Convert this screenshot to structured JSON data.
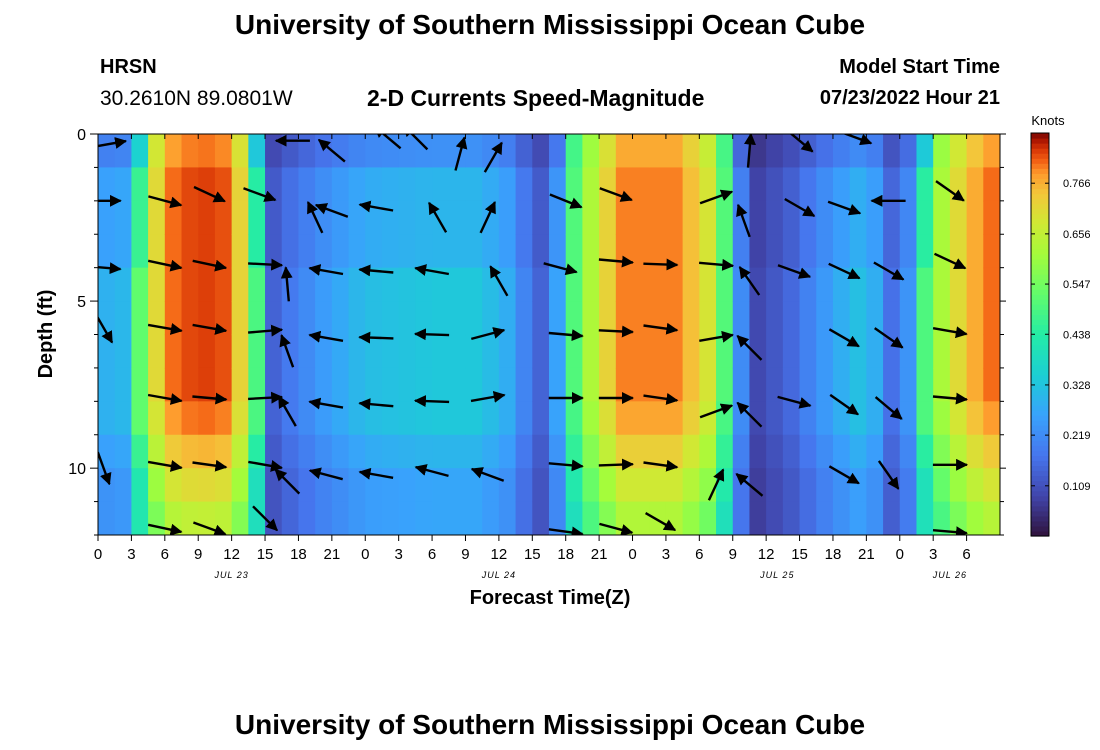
{
  "header": {
    "title": "University of Southern Mississippi Ocean Cube",
    "title_repeat": "University of Southern Mississippi Ocean Cube",
    "station": "HRSN",
    "coords": "30.2610N  89.0801W",
    "subtitle": "2-D Currents Speed-Magnitude",
    "start_label": "Model Start Time",
    "start_value": "07/23/2022 Hour 21"
  },
  "chart_data": {
    "type": "heatmap",
    "title": "2-D Currents Speed-Magnitude",
    "xlabel": "Forecast Time(Z)",
    "ylabel": "Depth (ft)",
    "colorbar_label": "Knots",
    "colorbar_ticks": [
      "0.766",
      "0.656",
      "0.547",
      "0.438",
      "0.328",
      "0.219",
      "0.109"
    ],
    "colorbar_values": [
      0.766,
      0.656,
      0.547,
      0.438,
      0.328,
      0.219,
      0.109
    ],
    "colorbar_range": [
      0.0,
      0.875
    ],
    "x_range_hours": [
      0,
      81
    ],
    "x_tick_labels": [
      "0",
      "3",
      "6",
      "9",
      "12",
      "15",
      "18",
      "21",
      "0",
      "3",
      "6",
      "9",
      "12",
      "15",
      "18",
      "21",
      "0",
      "3",
      "6",
      "9",
      "12",
      "15",
      "18",
      "21",
      "0",
      "3",
      "6"
    ],
    "date_labels": [
      {
        "label": "JUL 23",
        "hour": 12
      },
      {
        "label": "JUL 24",
        "hour": 36
      },
      {
        "label": "JUL 25",
        "hour": 61
      },
      {
        "label": "JUL 26",
        "hour": 76.5
      }
    ],
    "y_range_ft": [
      0,
      12
    ],
    "y_tick_labels": [
      "0",
      "5",
      "10"
    ],
    "y_tick_values": [
      0,
      5,
      10
    ],
    "speed_profile": {
      "hours": [
        0,
        1.5,
        3,
        4,
        5,
        6,
        9,
        12,
        13.5,
        14.5,
        15.5,
        17,
        20,
        24,
        30,
        34,
        37,
        38.5,
        40,
        41.5,
        43,
        47,
        52,
        55,
        56.5,
        57.5,
        59,
        62,
        66,
        69,
        70,
        71,
        73,
        75,
        78,
        81
      ],
      "knots": [
        0.29,
        0.23,
        0.31,
        0.52,
        0.68,
        0.8,
        0.84,
        0.82,
        0.62,
        0.38,
        0.12,
        0.16,
        0.22,
        0.28,
        0.3,
        0.3,
        0.25,
        0.17,
        0.12,
        0.26,
        0.55,
        0.8,
        0.8,
        0.68,
        0.47,
        0.22,
        0.08,
        0.13,
        0.24,
        0.3,
        0.24,
        0.14,
        0.22,
        0.58,
        0.75,
        0.83
      ]
    },
    "vectors": [
      {
        "hour": 1,
        "depth": 0.3,
        "dir_deg": 10
      },
      {
        "hour": 0.5,
        "depth": 2.0,
        "dir_deg": 0
      },
      {
        "hour": 0.5,
        "depth": 4.0,
        "dir_deg": -5
      },
      {
        "hour": 0.5,
        "depth": 5.8,
        "dir_deg": -60
      },
      {
        "hour": 0.5,
        "depth": 10.0,
        "dir_deg": -70
      },
      {
        "hour": 6,
        "depth": 2.0,
        "dir_deg": -15
      },
      {
        "hour": 6,
        "depth": 3.9,
        "dir_deg": -12
      },
      {
        "hour": 6,
        "depth": 5.8,
        "dir_deg": -10
      },
      {
        "hour": 6,
        "depth": 7.9,
        "dir_deg": -10
      },
      {
        "hour": 6,
        "depth": 9.9,
        "dir_deg": -10
      },
      {
        "hour": 6,
        "depth": 11.8,
        "dir_deg": -12
      },
      {
        "hour": 10,
        "depth": 1.8,
        "dir_deg": -25
      },
      {
        "hour": 10,
        "depth": 3.9,
        "dir_deg": -12
      },
      {
        "hour": 10,
        "depth": 5.8,
        "dir_deg": -10
      },
      {
        "hour": 10,
        "depth": 7.9,
        "dir_deg": -5
      },
      {
        "hour": 10,
        "depth": 9.9,
        "dir_deg": -8
      },
      {
        "hour": 10,
        "depth": 11.8,
        "dir_deg": -20
      },
      {
        "hour": 14.5,
        "depth": 1.8,
        "dir_deg": -20
      },
      {
        "hour": 15,
        "depth": 3.9,
        "dir_deg": -3
      },
      {
        "hour": 15,
        "depth": 5.9,
        "dir_deg": 5
      },
      {
        "hour": 15,
        "depth": 7.9,
        "dir_deg": 3
      },
      {
        "hour": 15,
        "depth": 9.9,
        "dir_deg": -10
      },
      {
        "hour": 15,
        "depth": 11.5,
        "dir_deg": -45
      },
      {
        "hour": 17.5,
        "depth": 0.2,
        "dir_deg": 180
      },
      {
        "hour": 19.5,
        "depth": 2.5,
        "dir_deg": 115
      },
      {
        "hour": 17,
        "depth": 4.5,
        "dir_deg": 95
      },
      {
        "hour": 17,
        "depth": 6.5,
        "dir_deg": 110
      },
      {
        "hour": 17,
        "depth": 8.3,
        "dir_deg": 120
      },
      {
        "hour": 17,
        "depth": 10.4,
        "dir_deg": 135
      },
      {
        "hour": 21,
        "depth": 0.5,
        "dir_deg": 140
      },
      {
        "hour": 21,
        "depth": 2.3,
        "dir_deg": 160
      },
      {
        "hour": 20.5,
        "depth": 4.1,
        "dir_deg": 170
      },
      {
        "hour": 20.5,
        "depth": 6.1,
        "dir_deg": 170
      },
      {
        "hour": 20.5,
        "depth": 8.1,
        "dir_deg": 170
      },
      {
        "hour": 20.5,
        "depth": 10.2,
        "dir_deg": 165
      },
      {
        "hour": 25,
        "depth": 2.2,
        "dir_deg": 170
      },
      {
        "hour": 25,
        "depth": 4.1,
        "dir_deg": 175
      },
      {
        "hour": 25,
        "depth": 6.1,
        "dir_deg": 178
      },
      {
        "hour": 25,
        "depth": 8.1,
        "dir_deg": 175
      },
      {
        "hour": 25,
        "depth": 10.2,
        "dir_deg": 170
      },
      {
        "hour": 26,
        "depth": 0.1,
        "dir_deg": 140
      },
      {
        "hour": 28.5,
        "depth": 0.1,
        "dir_deg": 135
      },
      {
        "hour": 30,
        "depth": 4.1,
        "dir_deg": 170
      },
      {
        "hour": 30,
        "depth": 6.0,
        "dir_deg": 178
      },
      {
        "hour": 30,
        "depth": 8.0,
        "dir_deg": 178
      },
      {
        "hour": 30,
        "depth": 10.1,
        "dir_deg": 165
      },
      {
        "hour": 30.5,
        "depth": 2.5,
        "dir_deg": 120
      },
      {
        "hour": 32.5,
        "depth": 0.6,
        "dir_deg": 75
      },
      {
        "hour": 35,
        "depth": 2.5,
        "dir_deg": 65
      },
      {
        "hour": 35.5,
        "depth": 0.7,
        "dir_deg": 60
      },
      {
        "hour": 36,
        "depth": 4.4,
        "dir_deg": 120
      },
      {
        "hour": 35,
        "depth": 6.0,
        "dir_deg": 15
      },
      {
        "hour": 35,
        "depth": 7.9,
        "dir_deg": 10
      },
      {
        "hour": 35,
        "depth": 10.2,
        "dir_deg": 160
      },
      {
        "hour": 41.5,
        "depth": 4.0,
        "dir_deg": -15
      },
      {
        "hour": 42,
        "depth": 2.0,
        "dir_deg": -22
      },
      {
        "hour": 42,
        "depth": 6.0,
        "dir_deg": -5
      },
      {
        "hour": 42,
        "depth": 7.9,
        "dir_deg": 0
      },
      {
        "hour": 42,
        "depth": 9.9,
        "dir_deg": -5
      },
      {
        "hour": 42,
        "depth": 11.9,
        "dir_deg": -8
      },
      {
        "hour": 46.5,
        "depth": 1.8,
        "dir_deg": -20
      },
      {
        "hour": 46.5,
        "depth": 3.8,
        "dir_deg": -5
      },
      {
        "hour": 46.5,
        "depth": 5.9,
        "dir_deg": -3
      },
      {
        "hour": 46.5,
        "depth": 7.9,
        "dir_deg": 0
      },
      {
        "hour": 46.5,
        "depth": 9.9,
        "dir_deg": 2
      },
      {
        "hour": 46.5,
        "depth": 11.8,
        "dir_deg": -15
      },
      {
        "hour": 50.5,
        "depth": 3.9,
        "dir_deg": -2
      },
      {
        "hour": 50.5,
        "depth": 5.8,
        "dir_deg": -8
      },
      {
        "hour": 50.5,
        "depth": 7.9,
        "dir_deg": -8
      },
      {
        "hour": 50.5,
        "depth": 9.9,
        "dir_deg": -8
      },
      {
        "hour": 50.5,
        "depth": 11.6,
        "dir_deg": -30
      },
      {
        "hour": 55.5,
        "depth": 3.9,
        "dir_deg": -5
      },
      {
        "hour": 55.5,
        "depth": 6.1,
        "dir_deg": 10
      },
      {
        "hour": 55.5,
        "depth": 8.3,
        "dir_deg": 20
      },
      {
        "hour": 55.5,
        "depth": 10.5,
        "dir_deg": 65
      },
      {
        "hour": 55.5,
        "depth": 1.9,
        "dir_deg": 20
      },
      {
        "hour": 58.5,
        "depth": 0.5,
        "dir_deg": 85
      },
      {
        "hour": 58,
        "depth": 2.6,
        "dir_deg": 110
      },
      {
        "hour": 58.5,
        "depth": 4.4,
        "dir_deg": 125
      },
      {
        "hour": 58.5,
        "depth": 6.4,
        "dir_deg": 135
      },
      {
        "hour": 58.5,
        "depth": 8.4,
        "dir_deg": 135
      },
      {
        "hour": 58.5,
        "depth": 10.5,
        "dir_deg": 140
      },
      {
        "hour": 63,
        "depth": 0.2,
        "dir_deg": -40
      },
      {
        "hour": 63,
        "depth": 2.2,
        "dir_deg": -30
      },
      {
        "hour": 62.5,
        "depth": 4.1,
        "dir_deg": -20
      },
      {
        "hour": 62.5,
        "depth": 8.0,
        "dir_deg": -15
      },
      {
        "hour": 68,
        "depth": 0.1,
        "dir_deg": -20
      },
      {
        "hour": 67,
        "depth": 2.2,
        "dir_deg": -20
      },
      {
        "hour": 67,
        "depth": 4.1,
        "dir_deg": -25
      },
      {
        "hour": 67,
        "depth": 6.1,
        "dir_deg": -30
      },
      {
        "hour": 67,
        "depth": 8.1,
        "dir_deg": -35
      },
      {
        "hour": 67,
        "depth": 10.2,
        "dir_deg": -30
      },
      {
        "hour": 71,
        "depth": 2.0,
        "dir_deg": 180
      },
      {
        "hour": 71,
        "depth": 4.1,
        "dir_deg": -30
      },
      {
        "hour": 71,
        "depth": 6.1,
        "dir_deg": -35
      },
      {
        "hour": 71,
        "depth": 8.2,
        "dir_deg": -40
      },
      {
        "hour": 71,
        "depth": 10.2,
        "dir_deg": -55
      },
      {
        "hour": 76.5,
        "depth": 1.7,
        "dir_deg": -35
      },
      {
        "hour": 76.5,
        "depth": 3.8,
        "dir_deg": -25
      },
      {
        "hour": 76.5,
        "depth": 5.9,
        "dir_deg": -10
      },
      {
        "hour": 76.5,
        "depth": 7.9,
        "dir_deg": -5
      },
      {
        "hour": 76.5,
        "depth": 9.9,
        "dir_deg": 0
      },
      {
        "hour": 76.5,
        "depth": 11.9,
        "dir_deg": -5
      }
    ]
  }
}
